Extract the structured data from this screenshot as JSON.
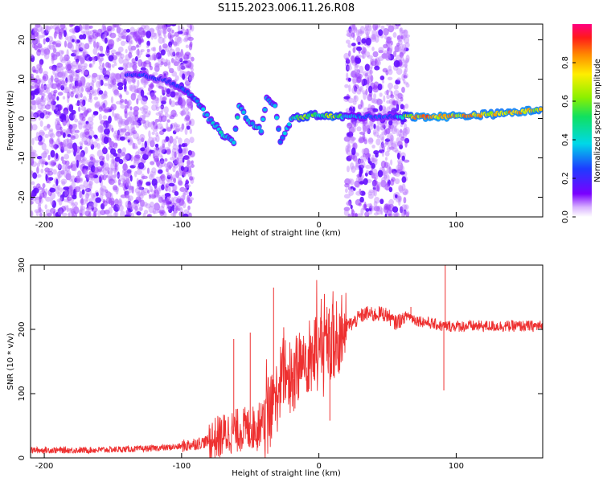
{
  "title": "S115.2023.006.11.26.R08",
  "chart_data": [
    {
      "type": "heatmap",
      "title": "",
      "xlabel": "Height of straight line (km)",
      "ylabel": "Frequency (Hz)",
      "xlim": [
        -210,
        163
      ],
      "ylim": [
        -25,
        24
      ],
      "x_ticks": [
        "-200",
        "-100",
        "0",
        "100"
      ],
      "x_tick_values": [
        -200,
        -100,
        0,
        100
      ],
      "y_ticks": [
        "20",
        "10",
        "0",
        "-10",
        "-20"
      ],
      "y_tick_values": [
        20,
        10,
        0,
        -10,
        -20
      ],
      "colorbar": {
        "label": "Normalized spectral amplitude",
        "range": [
          0,
          1
        ],
        "ticks": [
          "0.0",
          "0.2",
          "0.4",
          "0.6",
          "0.8"
        ],
        "tick_values": [
          0.0,
          0.2,
          0.4,
          0.6,
          0.8
        ]
      },
      "noise_regions": [
        {
          "x_range": [
            -210,
            -92
          ],
          "y_range": [
            -25,
            24
          ],
          "density": 0.75
        },
        {
          "x_range": [
            20,
            65
          ],
          "y_range": [
            -25,
            24
          ],
          "density": 0.7
        }
      ],
      "signal_track": [
        {
          "x": -140,
          "y": 11,
          "amplitude": 0.25
        },
        {
          "x": -130,
          "y": 11,
          "amplitude": 0.3
        },
        {
          "x": -115,
          "y": 10,
          "amplitude": 0.25
        },
        {
          "x": -100,
          "y": 8,
          "amplitude": 0.3
        },
        {
          "x": -90,
          "y": 5,
          "amplitude": 0.35
        },
        {
          "x": -80,
          "y": 0,
          "amplitude": 0.4
        },
        {
          "x": -70,
          "y": -4,
          "amplitude": 0.45
        },
        {
          "x": -62,
          "y": -6,
          "amplitude": 0.4
        },
        {
          "x": -58,
          "y": 3,
          "amplitude": 0.45
        },
        {
          "x": -50,
          "y": -1,
          "amplitude": 0.4
        },
        {
          "x": -42,
          "y": -3,
          "amplitude": 0.45
        },
        {
          "x": -38,
          "y": 5,
          "amplitude": 0.35
        },
        {
          "x": -32,
          "y": 3,
          "amplitude": 0.4
        },
        {
          "x": -28,
          "y": -6,
          "amplitude": 0.4
        },
        {
          "x": -20,
          "y": 0,
          "amplitude": 0.45
        },
        {
          "x": -10,
          "y": 0.5,
          "amplitude": 0.75
        },
        {
          "x": 0,
          "y": 1,
          "amplitude": 0.5
        },
        {
          "x": 10,
          "y": 0.5,
          "amplitude": 0.8
        },
        {
          "x": 20,
          "y": 0.5,
          "amplitude": 0.4
        },
        {
          "x": 35,
          "y": 0.5,
          "amplitude": 0.3
        },
        {
          "x": 55,
          "y": 0.5,
          "amplitude": 0.3
        },
        {
          "x": 70,
          "y": 0.5,
          "amplitude": 0.9
        },
        {
          "x": 90,
          "y": 0.5,
          "amplitude": 0.92
        },
        {
          "x": 110,
          "y": 0.8,
          "amplitude": 0.88
        },
        {
          "x": 130,
          "y": 1.2,
          "amplitude": 0.85
        },
        {
          "x": 150,
          "y": 1.8,
          "amplitude": 0.9
        },
        {
          "x": 163,
          "y": 2.5,
          "amplitude": 0.85
        }
      ]
    },
    {
      "type": "line",
      "title": "",
      "xlabel": "Height of straight line (km)",
      "ylabel": "SNR (10 * v/v)",
      "xlim": [
        -210,
        163
      ],
      "ylim": [
        0,
        300
      ],
      "x_ticks": [
        "-200",
        "-100",
        "0",
        "100"
      ],
      "x_tick_values": [
        -200,
        -100,
        0,
        100
      ],
      "y_ticks": [
        "0",
        "100",
        "200",
        "300"
      ],
      "y_tick_values": [
        0,
        100,
        200,
        300
      ],
      "color": "#ee3030",
      "series": [
        {
          "x": [
            -210,
            -190,
            -170,
            -150,
            -130,
            -110,
            -100,
            -90,
            -80,
            -75,
            -70,
            -65,
            -60,
            -55,
            -50,
            -45,
            -40,
            -35,
            -30,
            -25,
            -20,
            -15,
            -10,
            -5,
            0,
            5,
            10,
            15,
            20,
            25,
            30,
            35,
            40,
            45,
            50,
            55,
            60,
            65,
            70,
            80,
            90,
            92,
            100,
            110,
            120,
            130,
            140,
            150,
            163
          ],
          "y": [
            12,
            12,
            12,
            13,
            14,
            16,
            18,
            22,
            26,
            30,
            35,
            40,
            42,
            45,
            45,
            50,
            55,
            70,
            100,
            140,
            120,
            140,
            155,
            160,
            165,
            180,
            175,
            190,
            205,
            210,
            220,
            225,
            222,
            225,
            222,
            210,
            215,
            222,
            215,
            210,
            205,
            205,
            205,
            205,
            205,
            205,
            205,
            205,
            205
          ],
          "spikes": [
            {
              "x": -33,
              "y": 265
            },
            {
              "x": -50,
              "y": 195
            },
            {
              "x": -62,
              "y": 185
            },
            {
              "x": 8,
              "y": 58
            },
            {
              "x": 92,
              "y": 300
            },
            {
              "x": 91,
              "y": 105
            },
            {
              "x": 67,
              "y": 235
            }
          ]
        }
      ]
    }
  ]
}
